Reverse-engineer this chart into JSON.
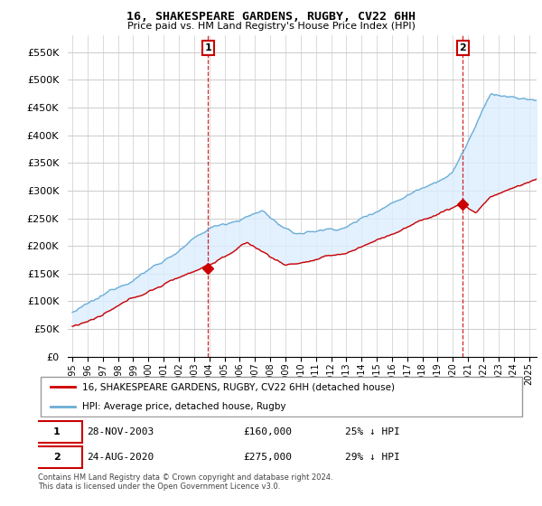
{
  "title": "16, SHAKESPEARE GARDENS, RUGBY, CV22 6HH",
  "subtitle": "Price paid vs. HM Land Registry's House Price Index (HPI)",
  "legend_label_red": "16, SHAKESPEARE GARDENS, RUGBY, CV22 6HH (detached house)",
  "legend_label_blue": "HPI: Average price, detached house, Rugby",
  "annotation1_date": "28-NOV-2003",
  "annotation1_price": "£160,000",
  "annotation1_hpi": "25% ↓ HPI",
  "annotation2_date": "24-AUG-2020",
  "annotation2_price": "£275,000",
  "annotation2_hpi": "29% ↓ HPI",
  "footer": "Contains HM Land Registry data © Crown copyright and database right 2024.\nThis data is licensed under the Open Government Licence v3.0.",
  "hpi_color": "#6baed6",
  "price_color": "#cc0000",
  "fill_color": "#ddeeff",
  "annotation_color": "#cc0000",
  "background_color": "#ffffff",
  "grid_color": "#cccccc",
  "ylim": [
    0,
    580000
  ],
  "yticks": [
    0,
    50000,
    100000,
    150000,
    200000,
    250000,
    300000,
    350000,
    400000,
    450000,
    500000,
    550000
  ],
  "xlim_start": 1994.7,
  "xlim_end": 2025.5,
  "sale1_x": 2003.91,
  "sale1_y": 160000,
  "sale2_x": 2020.65,
  "sale2_y": 275000
}
